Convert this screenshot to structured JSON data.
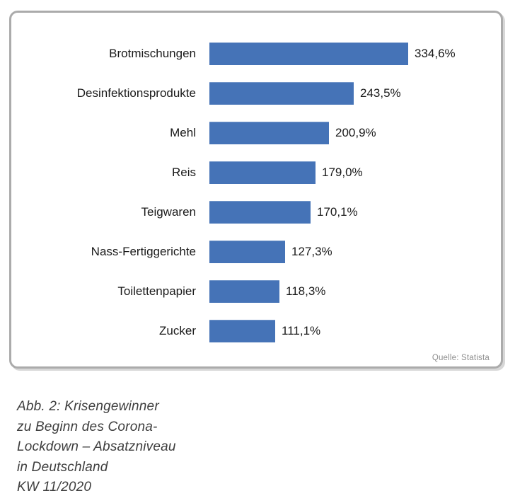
{
  "chart_data": {
    "type": "bar",
    "orientation": "horizontal",
    "categories": [
      "Brotmischungen",
      "Desinfektionsprodukte",
      "Mehl",
      "Reis",
      "Teigwaren",
      "Nass-Fertiggerichte",
      "Toilettenpapier",
      "Zucker"
    ],
    "values": [
      334.6,
      243.5,
      200.9,
      179.0,
      170.1,
      127.3,
      118.3,
      111.1
    ],
    "value_labels": [
      "334,6%",
      "243,5%",
      "200,9%",
      "179,0%",
      "170,1%",
      "127,3%",
      "118,3%",
      "111,1%"
    ],
    "title": "",
    "xlabel": "",
    "ylabel": "",
    "xlim": [
      0,
      400
    ],
    "grid": false,
    "legend": "none",
    "bar_color": "#4573b7",
    "source": "Quelle: Statista"
  },
  "caption": {
    "lines": [
      "Abb. 2: Krisengewinner",
      "zu Beginn des Corona-",
      "Lockdown – Absatzniveau",
      "in Deutschland",
      "KW 11/2020"
    ]
  }
}
